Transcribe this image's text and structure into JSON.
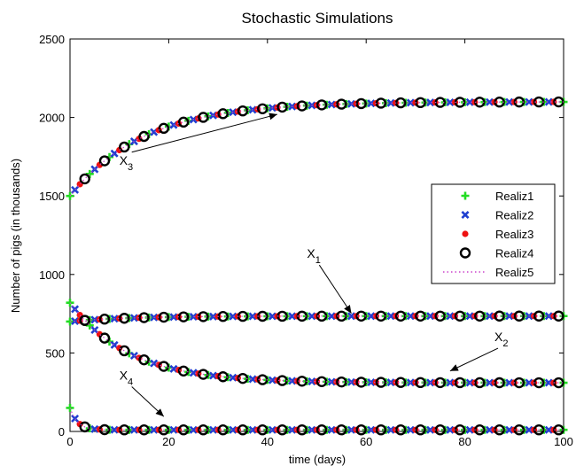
{
  "chart_data": {
    "type": "scatter",
    "title": "Stochastic Simulations",
    "xlabel": "time (days)",
    "ylabel": "Number of pigs (in thousands)",
    "xlim": [
      0,
      100
    ],
    "ylim": [
      0,
      2500
    ],
    "xticks": [
      0,
      20,
      40,
      60,
      80,
      100
    ],
    "yticks": [
      0,
      500,
      1000,
      1500,
      2000,
      2500
    ],
    "grid": false,
    "legend_position": "right",
    "series": [
      {
        "name": "Realiz1",
        "marker": "plus",
        "color": "#22dd22",
        "offset": 0
      },
      {
        "name": "Realiz2",
        "marker": "x",
        "color": "#1f3fd0",
        "offset": 1
      },
      {
        "name": "Realiz3",
        "marker": "dot",
        "color": "#ee1111",
        "offset": 2
      },
      {
        "name": "Realiz4",
        "marker": "circle",
        "color": "#000000",
        "offset": 3
      },
      {
        "name": "Realiz5",
        "marker": "dotted-line",
        "color": "#cc44cc",
        "offset": 0
      }
    ],
    "variables": [
      {
        "id": "X3",
        "initial": 1500,
        "final": 2100,
        "tau": 15
      },
      {
        "id": "X1",
        "initial": 700,
        "final": 735,
        "tau": 12
      },
      {
        "id": "X2",
        "initial": 820,
        "final": 310,
        "tau": 12
      },
      {
        "id": "X4",
        "initial": 150,
        "final": 10,
        "tau": 1.5
      }
    ],
    "annotations": [
      {
        "label": "X",
        "sub": "3",
        "text_at": [
          10,
          1700
        ],
        "arrow_to": [
          42,
          2020
        ]
      },
      {
        "label": "X",
        "sub": "1",
        "text_at": [
          48,
          1105
        ],
        "arrow_to": [
          57,
          752
        ]
      },
      {
        "label": "X",
        "sub": "2",
        "text_at": [
          86,
          575
        ],
        "arrow_to": [
          77,
          385
        ]
      },
      {
        "label": "X",
        "sub": "4",
        "text_at": [
          10,
          330
        ],
        "arrow_to": [
          19,
          95
        ]
      }
    ]
  }
}
